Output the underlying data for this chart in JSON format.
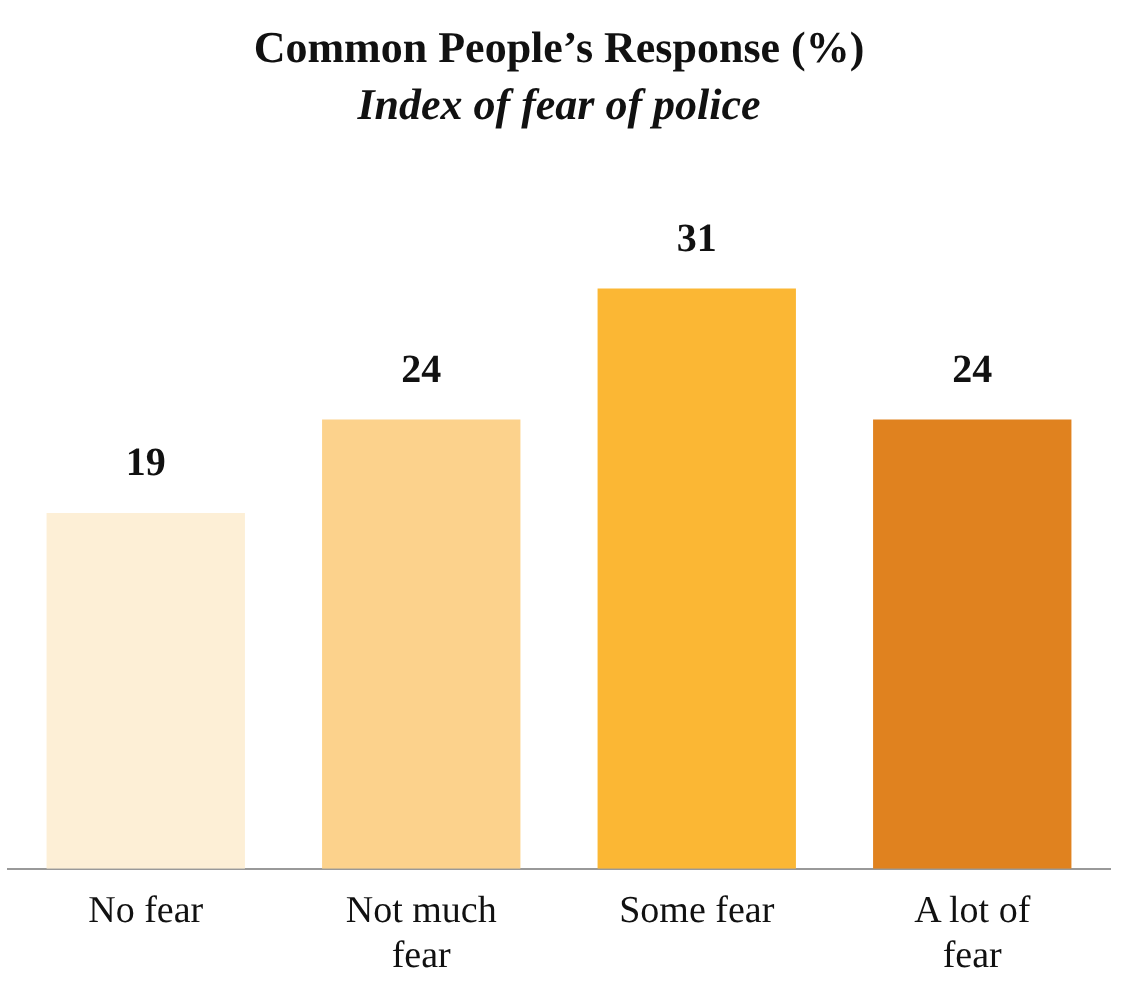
{
  "chart_data": {
    "type": "bar",
    "title": "Common People’s Response (%)",
    "subtitle": "Index of fear of police",
    "categories": [
      "No fear",
      "Not much fear",
      "Some fear",
      "A lot of fear"
    ],
    "values": [
      19,
      24,
      31,
      24
    ],
    "colors": [
      "#fdefd6",
      "#fcd28c",
      "#fbb734",
      "#e0821f"
    ],
    "data_labels": true,
    "grid": false,
    "legend": false
  }
}
